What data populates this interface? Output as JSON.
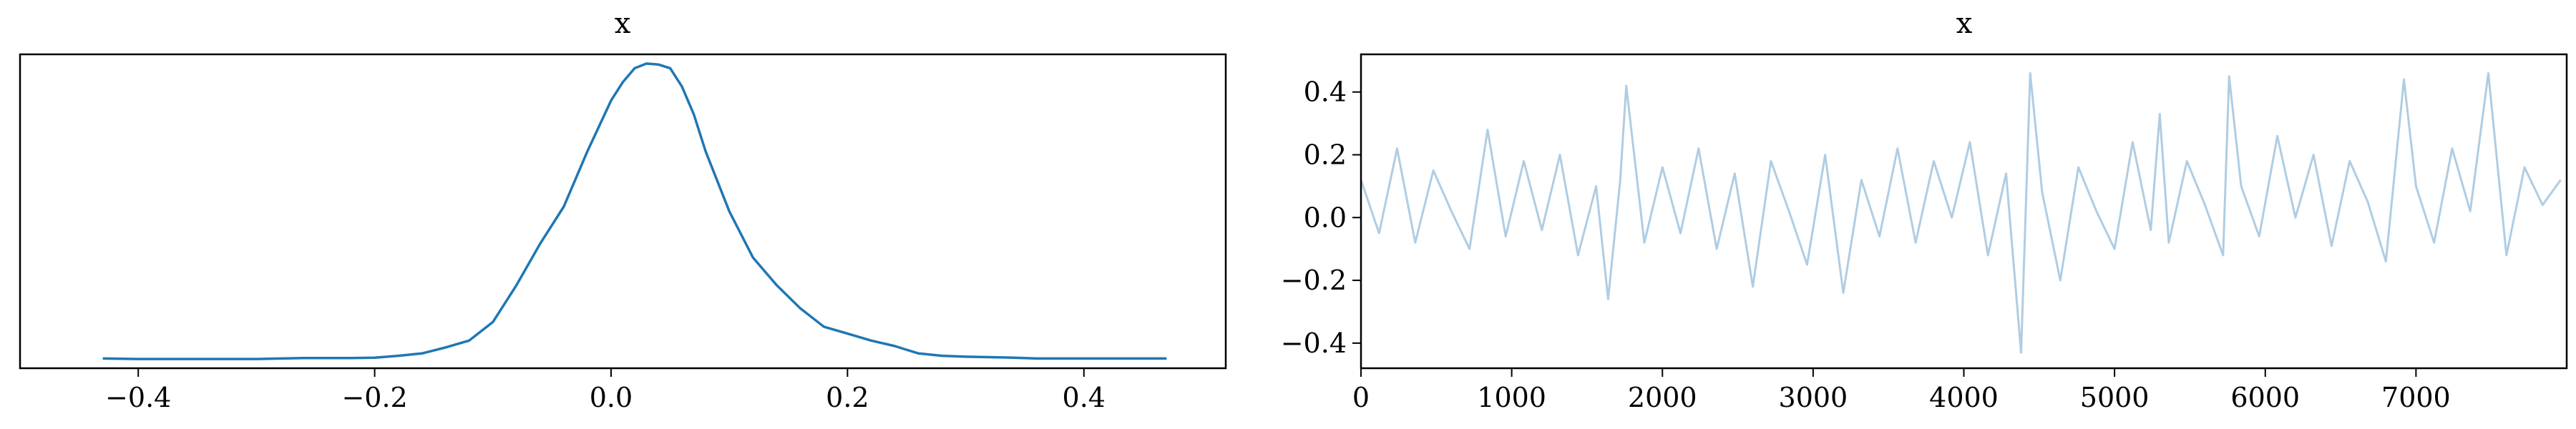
{
  "colors": {
    "kde_line": "#1f77b4",
    "trace_line": "#a6c8e0"
  },
  "chart_data": [
    {
      "type": "line",
      "title": "x",
      "xlabel": "",
      "ylabel": "",
      "xlim": [
        -0.5,
        0.52
      ],
      "ylim": [
        -0.2,
        6.6
      ],
      "grid": false,
      "xticks": [
        -0.4,
        -0.2,
        0.0,
        0.2,
        0.4
      ],
      "xtick_labels": [
        "−0.4",
        "−0.2",
        "0.0",
        "0.2",
        "0.4"
      ],
      "yticks_visible": false,
      "series": [
        {
          "x": [
            -0.43,
            -0.4,
            -0.35,
            -0.3,
            -0.26,
            -0.22,
            -0.2,
            -0.18,
            -0.16,
            -0.14,
            -0.12,
            -0.1,
            -0.08,
            -0.06,
            -0.04,
            -0.02,
            0.0,
            0.01,
            0.02,
            0.03,
            0.04,
            0.05,
            0.06,
            0.07,
            0.08,
            0.1,
            0.12,
            0.14,
            0.16,
            0.18,
            0.2,
            0.22,
            0.24,
            0.26,
            0.28,
            0.3,
            0.32,
            0.34,
            0.36,
            0.38,
            0.4,
            0.42,
            0.44,
            0.47
          ],
          "y": [
            0.01,
            0.0,
            0.0,
            0.0,
            0.02,
            0.02,
            0.03,
            0.07,
            0.12,
            0.25,
            0.4,
            0.8,
            1.6,
            2.5,
            3.3,
            4.5,
            5.6,
            6.0,
            6.3,
            6.4,
            6.38,
            6.3,
            5.9,
            5.3,
            4.5,
            3.2,
            2.2,
            1.6,
            1.1,
            0.7,
            0.55,
            0.4,
            0.28,
            0.12,
            0.07,
            0.05,
            0.04,
            0.03,
            0.01,
            0.01,
            0.01,
            0.01,
            0.01,
            0.01
          ]
        }
      ]
    },
    {
      "type": "line",
      "title": "x",
      "xlabel": "",
      "ylabel": "",
      "xlim": [
        0,
        8000
      ],
      "ylim": [
        -0.48,
        0.52
      ],
      "grid": false,
      "xticks": [
        0,
        1000,
        2000,
        3000,
        4000,
        5000,
        6000,
        7000
      ],
      "xtick_labels": [
        "0",
        "1000",
        "2000",
        "3000",
        "4000",
        "5000",
        "6000",
        "7000"
      ],
      "yticks": [
        -0.4,
        -0.2,
        0.0,
        0.2,
        0.4
      ],
      "ytick_labels": [
        "−0.4",
        "−0.2",
        "0.0",
        "0.2",
        "0.4"
      ],
      "series": [
        {
          "x": [
            0,
            120,
            240,
            360,
            480,
            600,
            720,
            840,
            960,
            1080,
            1200,
            1320,
            1440,
            1560,
            1640,
            1720,
            1760,
            1880,
            2000,
            2120,
            2240,
            2360,
            2480,
            2600,
            2720,
            2840,
            2960,
            3080,
            3200,
            3320,
            3440,
            3560,
            3680,
            3800,
            3920,
            4040,
            4160,
            4280,
            4380,
            4440,
            4520,
            4640,
            4760,
            4880,
            5000,
            5120,
            5240,
            5300,
            5360,
            5480,
            5600,
            5720,
            5760,
            5840,
            5960,
            6080,
            6200,
            6320,
            6440,
            6560,
            6680,
            6800,
            6920,
            7000,
            7120,
            7240,
            7360,
            7480,
            7600,
            7720,
            7840,
            7960
          ],
          "y": [
            0.12,
            -0.05,
            0.22,
            -0.08,
            0.15,
            0.02,
            -0.1,
            0.28,
            -0.06,
            0.18,
            -0.04,
            0.2,
            -0.12,
            0.1,
            -0.26,
            0.12,
            0.42,
            -0.08,
            0.16,
            -0.05,
            0.22,
            -0.1,
            0.14,
            -0.22,
            0.18,
            0.02,
            -0.15,
            0.2,
            -0.24,
            0.12,
            -0.06,
            0.22,
            -0.08,
            0.18,
            0.0,
            0.24,
            -0.12,
            0.14,
            -0.43,
            0.46,
            0.08,
            -0.2,
            0.16,
            0.02,
            -0.1,
            0.24,
            -0.04,
            0.33,
            -0.08,
            0.18,
            0.04,
            -0.12,
            0.45,
            0.1,
            -0.06,
            0.26,
            0.0,
            0.2,
            -0.09,
            0.18,
            0.05,
            -0.14,
            0.44,
            0.1,
            -0.08,
            0.22,
            0.02,
            0.46,
            -0.12,
            0.16,
            0.04,
            0.12
          ]
        }
      ]
    }
  ]
}
